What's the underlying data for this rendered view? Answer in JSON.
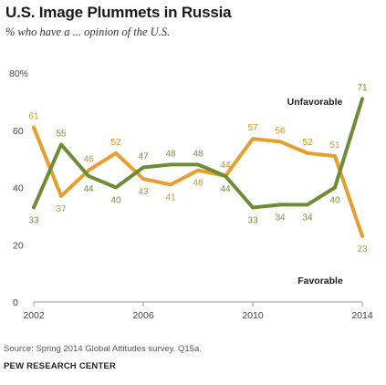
{
  "title": "U.S. Image Plummets in Russia",
  "subtitle": "% who have a ... opinion of the U.S.",
  "source": "Source: Spring 2014 Global Attitudes survey. Q15a.",
  "org": "PEW RESEARCH CENTER",
  "colors": {
    "favorable": "#E69F2D",
    "unfavorable": "#6E8C35",
    "axis": "#999999"
  },
  "chart_data": {
    "type": "line",
    "x": [
      2002,
      2003,
      2004,
      2005,
      2006,
      2007,
      2008,
      2009,
      2010,
      2011,
      2012,
      2013,
      2014
    ],
    "x_tick_labels": [
      "2002",
      "2006",
      "2010",
      "2014"
    ],
    "y_tick_labels": [
      "0",
      "20",
      "40",
      "60",
      "80%"
    ],
    "xlim": [
      2002,
      2014
    ],
    "ylim": [
      0,
      80
    ],
    "grid": false,
    "series": [
      {
        "name": "Favorable",
        "values": [
          61,
          37,
          46,
          52,
          43,
          41,
          46,
          44,
          57,
          56,
          52,
          51,
          23
        ]
      },
      {
        "name": "Unfavorable",
        "values": [
          33,
          55,
          44,
          40,
          47,
          48,
          48,
          44,
          33,
          34,
          34,
          40,
          71
        ]
      }
    ]
  }
}
